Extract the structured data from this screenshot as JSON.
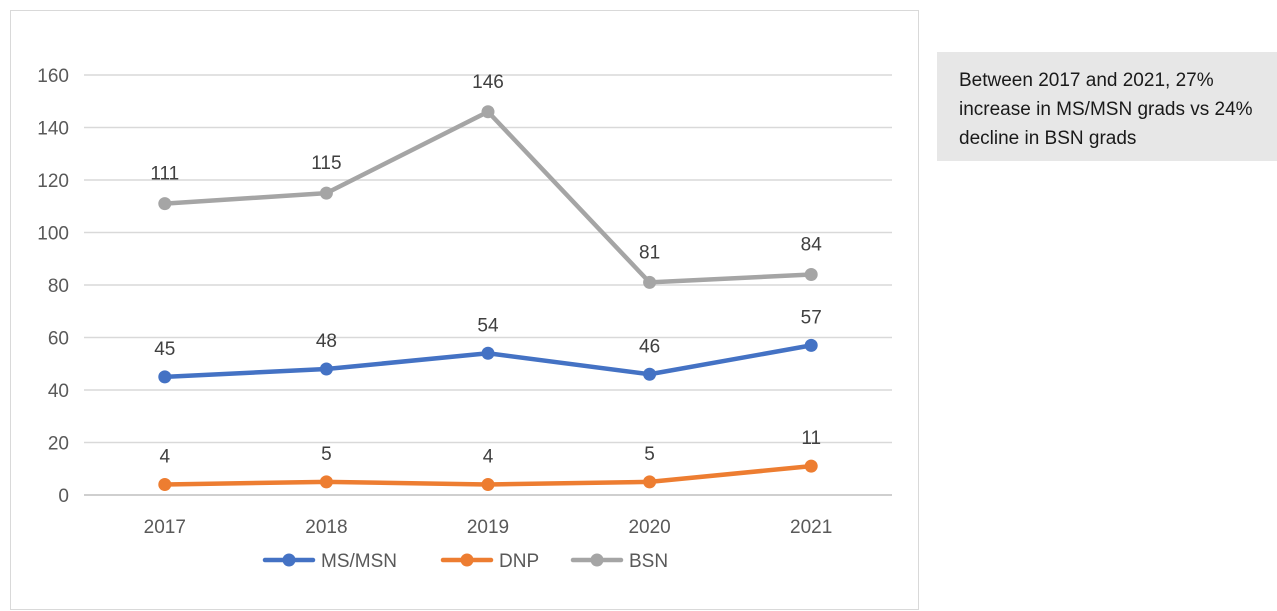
{
  "callout": {
    "text": "Between 2017 and 2021, 27% increase in MS/MSN grads vs 24% decline in BSN grads"
  },
  "chart_data": {
    "type": "line",
    "categories": [
      "2017",
      "2018",
      "2019",
      "2020",
      "2021"
    ],
    "ylim": [
      0,
      160
    ],
    "yticks": [
      0,
      20,
      40,
      60,
      80,
      100,
      120,
      140,
      160
    ],
    "grid": true,
    "legend_placement": "bottom",
    "series": [
      {
        "name": "MS/MSN",
        "color": "#4472c4",
        "values": [
          45,
          48,
          54,
          46,
          57
        ]
      },
      {
        "name": "DNP",
        "color": "#ed7d31",
        "values": [
          4,
          5,
          4,
          5,
          11
        ]
      },
      {
        "name": "BSN",
        "color": "#a5a5a5",
        "values": [
          111,
          115,
          146,
          81,
          84
        ]
      }
    ]
  }
}
